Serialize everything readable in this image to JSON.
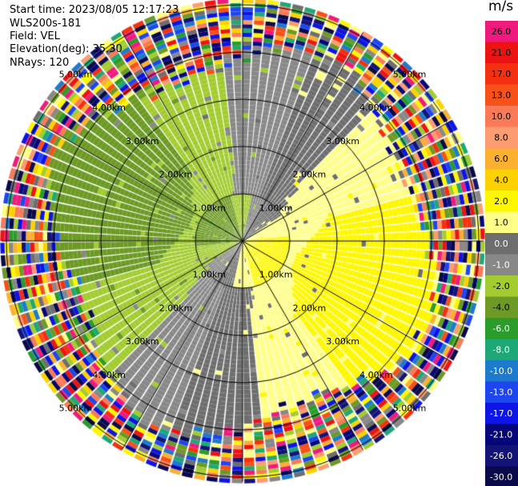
{
  "info": {
    "start_time": "Start time: 2023/08/05 12:17:23",
    "instrument": "WLS200s-181",
    "field": "Field: VEL",
    "elevation": "Elevation(deg): 35.30",
    "nrays": "NRays: 120"
  },
  "chart_data": {
    "type": "heatmap",
    "subtype": "polar-ppi",
    "field": "VEL",
    "n_rays": 120,
    "range_unit": "km",
    "range_rings": [
      1.0,
      2.0,
      3.0,
      4.0,
      5.0
    ],
    "range_ring_labels": [
      "1.00km",
      "2.00km",
      "3.00km",
      "4.00km",
      "5.00km"
    ],
    "colorbar": {
      "unit": "m/s",
      "vmin": -30.0,
      "vmax": 30.0,
      "tick_labels": [
        "26.0",
        "21.0",
        "17.0",
        "13.0",
        "10.0",
        "8.0",
        "6.0",
        "4.0",
        "2.0",
        "1.0",
        "0.0",
        "-1.0",
        "-2.0",
        "-4.0",
        "-6.0",
        "-8.0",
        "-10.0",
        "-13.0",
        "-17.0",
        "-21.0",
        "-26.0",
        "-30.0"
      ],
      "colors": [
        "#f01a7e",
        "#ee1313",
        "#f43010",
        "#f75018",
        "#fa7a57",
        "#fc9c70",
        "#fbb030",
        "#fdd200",
        "#fff700",
        "#ffff88",
        "#6e6e6e",
        "#888888",
        "#a2cc30",
        "#6c9a24",
        "#2a9c2a",
        "#1ea878",
        "#1e7acc",
        "#1e46f0",
        "#0d14e6",
        "#06067a",
        "#141478",
        "#0a0a4a"
      ]
    }
  }
}
